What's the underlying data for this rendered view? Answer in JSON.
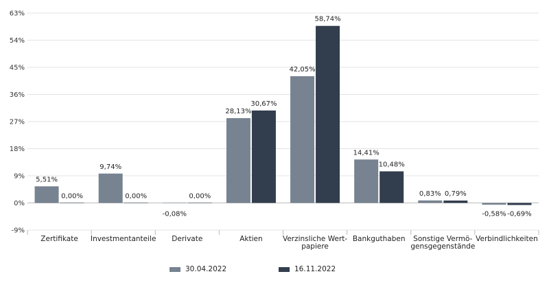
{
  "chart_data": {
    "type": "bar",
    "categories": [
      [
        "Zertifikate"
      ],
      [
        "Investmentanteile"
      ],
      [
        "Derivate"
      ],
      [
        "Aktien"
      ],
      [
        "Verzinsliche Wert-",
        "papiere"
      ],
      [
        "Bankguthaben"
      ],
      [
        "Sonstige Vermö-",
        "gensgegenstände"
      ],
      [
        "Verbindlichkeiten"
      ]
    ],
    "series": [
      {
        "name": "30.04.2022",
        "color": "#778390",
        "values": [
          5.51,
          9.74,
          -0.08,
          28.13,
          42.05,
          14.41,
          0.83,
          -0.58
        ],
        "labels": [
          "5,51%",
          "9,74%",
          "-0,08%",
          "28,13%",
          "42,05%",
          "14,41%",
          "0,83%",
          "-0,58%"
        ]
      },
      {
        "name": "16.11.2022",
        "color": "#323d4d",
        "values": [
          0.0,
          0.0,
          0.0,
          30.67,
          58.74,
          10.48,
          0.79,
          -0.69
        ],
        "labels": [
          "0,00%",
          "0,00%",
          "0,00%",
          "30,67%",
          "58,74%",
          "10,48%",
          "0,79%",
          "-0,69%"
        ]
      }
    ],
    "ylim": [
      -9,
      63
    ],
    "yticks": [
      -9,
      0,
      9,
      18,
      27,
      36,
      45,
      54,
      63
    ],
    "ytick_labels": [
      "-9%",
      "0%",
      "9%",
      "18%",
      "27%",
      "36%",
      "45%",
      "54%",
      "63%"
    ],
    "grid": true,
    "legend_position": "bottom"
  }
}
